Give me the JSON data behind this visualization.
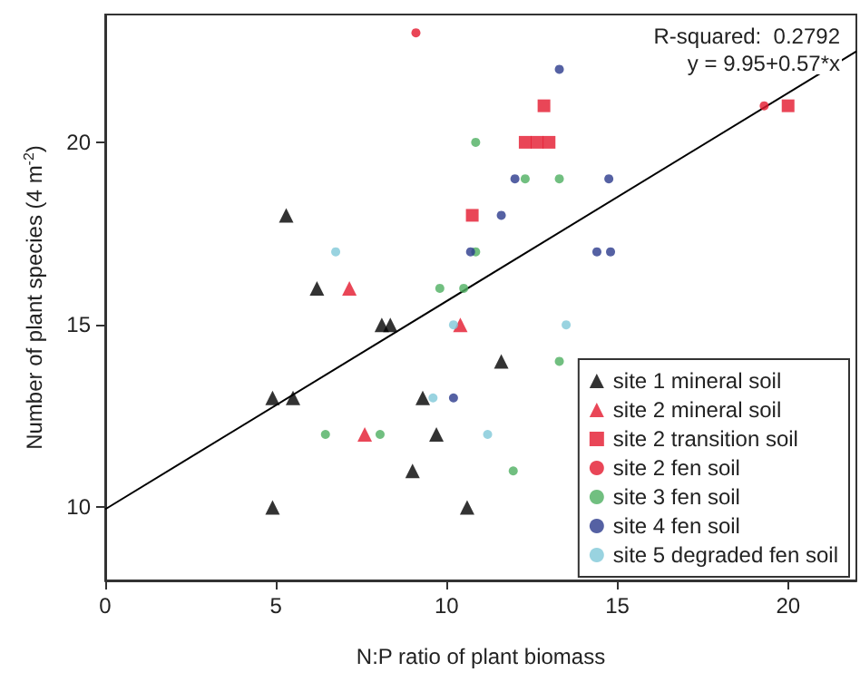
{
  "chart_data": {
    "type": "scatter",
    "xlabel": "N:P ratio of plant biomass",
    "ylabel": "Number of plant species (4 m$^{-2}$)",
    "annotations": [
      "R-squared:  0.2792",
      "y = 9.95+0.57*x"
    ],
    "xlim": [
      0,
      22
    ],
    "ylim": [
      8,
      23.5
    ],
    "xticks": [
      0,
      5,
      10,
      15,
      20
    ],
    "yticks": [
      10,
      15,
      20
    ],
    "grid": false,
    "legend": "bottom right",
    "series": [
      {
        "name": "site 1 mineral soil",
        "color": "#000000",
        "marker": "triangle",
        "x": [
          5.3,
          6.2,
          8.1,
          8.35,
          4.9,
          5.5,
          9.3,
          9.7,
          9.0,
          4.9,
          10.6,
          11.6
        ],
        "values": [
          18,
          16,
          15,
          15,
          13,
          13,
          13,
          12,
          11,
          10,
          10,
          14
        ]
      },
      {
        "name": "site 2 mineral soil",
        "color": "#e3182d",
        "marker": "triangle",
        "x": [
          7.15,
          10.4,
          7.6
        ],
        "values": [
          16,
          15,
          12
        ]
      },
      {
        "name": "site 2 transition soil",
        "color": "#e3182d",
        "marker": "square",
        "x": [
          10.75,
          12.85,
          12.3,
          12.65,
          13.0,
          20.0
        ],
        "values": [
          18,
          21,
          20,
          20,
          20,
          21
        ]
      },
      {
        "name": "site 2 fen soil",
        "color": "#e3182d",
        "marker": "circle",
        "x": [
          9.1,
          19.3
        ],
        "values": [
          23,
          21
        ]
      },
      {
        "name": "site 3 fen soil",
        "color": "#4daf60",
        "marker": "circle",
        "x": [
          9.8,
          10.5,
          10.85,
          10.85,
          12.3,
          13.3,
          13.3,
          6.45,
          8.05,
          11.95
        ],
        "values": [
          16,
          16,
          17,
          20,
          19,
          19,
          14,
          12,
          12,
          11
        ]
      },
      {
        "name": "site 4 fen soil",
        "color": "#2b3a8c",
        "marker": "circle",
        "x": [
          10.7,
          13.3,
          12.0,
          14.75,
          11.6,
          14.4,
          14.8,
          10.2
        ],
        "values": [
          17,
          22,
          19,
          19,
          18,
          17,
          17,
          13
        ]
      },
      {
        "name": "site 5 degraded fen soil",
        "color": "#7fc8d8",
        "marker": "circle",
        "x": [
          6.75,
          13.5,
          10.2,
          9.6,
          11.2
        ],
        "values": [
          17,
          15,
          15,
          13,
          12
        ]
      },
      {
        "type": "line",
        "color": "#000000",
        "marker": "none",
        "line_style": "solid",
        "x": [
          0,
          22
        ],
        "values": [
          9.95,
          22.49
        ]
      }
    ]
  }
}
